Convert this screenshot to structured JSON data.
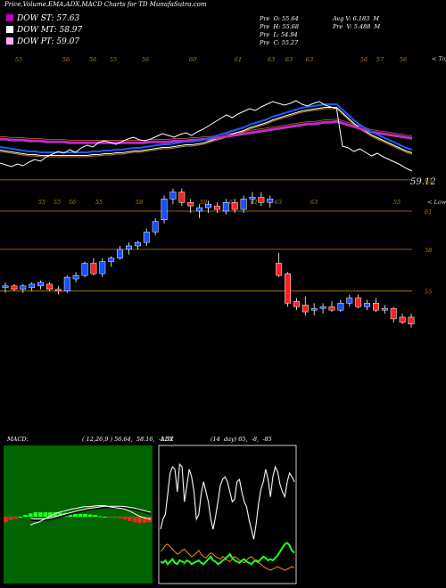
{
  "header": {
    "title": "Price,Volume,EMA,ADX,MACD Charts for TD MunafaSutra.com",
    "legends": [
      {
        "label": "DOW ST: 57.63",
        "color": "#c000c0"
      },
      {
        "label": "DOW MT: 58.97",
        "color": "#ffffff"
      },
      {
        "label": "DOW PT: 59.07",
        "color": "#ffb0ff"
      }
    ],
    "stats_left": [
      "Pre  O: 55.64",
      "Pre  H: 55.68",
      "Pre  L: 54.94",
      "Pre  C: 55.27"
    ],
    "stats_right": [
      "Avg V: 6.183  M",
      "Pre  V: 5.488  M"
    ]
  },
  "colors": {
    "up": "#1a4fff",
    "down": "#ff2020",
    "grid": "#b8860b",
    "ema_fast": "#1a5cff",
    "ema_magenta": "#d020d0",
    "price_line": "#ffffff",
    "adx_green": "#22ff22",
    "adx_orange": "#ff8c00"
  },
  "chart_data": [
    {
      "type": "line",
      "panel": "price_ema",
      "top_tick_labels": [
        "55",
        "56",
        "56",
        "55",
        "56",
        "60",
        "61",
        "63",
        "63",
        "63",
        "56",
        "57",
        "56"
      ],
      "bottom_tick_labels": [
        "55",
        "55",
        "56",
        "55",
        "59",
        "59",
        "61",
        "61",
        "63",
        "63",
        "55"
      ],
      "right_top_label": "< Tops",
      "right_bottom_label": "< Lows",
      "last_price_label": "59.12",
      "price": [
        56.2,
        56.0,
        55.8,
        56.1,
        55.9,
        56.3,
        56.6,
        56.4,
        56.9,
        57.2,
        57.5,
        57.3,
        57.7,
        57.4,
        57.9,
        58.2,
        58.0,
        58.5,
        58.7,
        58.5,
        58.3,
        58.6,
        58.9,
        59.1,
        58.8,
        58.7,
        58.9,
        59.2,
        59.5,
        59.3,
        59.1,
        59.4,
        59.6,
        59.3,
        59.7,
        60.0,
        60.4,
        60.8,
        61.2,
        61.6,
        61.3,
        61.7,
        62.0,
        62.3,
        62.1,
        62.5,
        62.8,
        63.1,
        62.9,
        62.7,
        62.9,
        63.2,
        62.8,
        62.6,
        62.9,
        63.1,
        62.7,
        62.5,
        62.3,
        58.1,
        57.9,
        57.5,
        57.8,
        57.4,
        57.0,
        57.3,
        56.9,
        56.6,
        56.3,
        56.0,
        55.6,
        55.3
      ],
      "ema_fast": [
        58.0,
        57.9,
        57.8,
        57.7,
        57.6,
        57.5,
        57.5,
        57.4,
        57.4,
        57.4,
        57.4,
        57.4,
        57.4,
        57.4,
        57.4,
        57.4,
        57.5,
        57.5,
        57.6,
        57.6,
        57.7,
        57.7,
        57.8,
        57.9,
        57.9,
        58.0,
        58.1,
        58.2,
        58.3,
        58.3,
        58.4,
        58.5,
        58.6,
        58.6,
        58.7,
        58.8,
        59.0,
        59.2,
        59.4,
        59.6,
        59.8,
        60.0,
        60.2,
        60.5,
        60.7,
        60.9,
        61.1,
        61.4,
        61.6,
        61.8,
        62.0,
        62.2,
        62.4,
        62.5,
        62.6,
        62.7,
        62.8,
        62.8,
        62.8,
        62.2,
        61.6,
        61.0,
        60.5,
        60.1,
        59.7,
        59.4,
        59.1,
        58.8,
        58.5,
        58.2,
        57.9,
        57.7
      ],
      "ema_magenta": [
        58.9,
        58.9,
        58.8,
        58.8,
        58.8,
        58.7,
        58.7,
        58.7,
        58.6,
        58.6,
        58.6,
        58.6,
        58.5,
        58.5,
        58.5,
        58.5,
        58.5,
        58.5,
        58.5,
        58.5,
        58.5,
        58.5,
        58.5,
        58.5,
        58.5,
        58.5,
        58.6,
        58.6,
        58.6,
        58.6,
        58.7,
        58.7,
        58.7,
        58.8,
        58.8,
        58.9,
        58.9,
        59.0,
        59.1,
        59.2,
        59.3,
        59.4,
        59.5,
        59.6,
        59.7,
        59.8,
        59.9,
        60.0,
        60.1,
        60.2,
        60.3,
        60.4,
        60.5,
        60.6,
        60.6,
        60.7,
        60.8,
        60.8,
        60.9,
        60.7,
        60.5,
        60.3,
        60.1,
        59.9,
        59.7,
        59.6,
        59.5,
        59.4,
        59.3,
        59.2,
        59.1,
        59.0
      ]
    },
    {
      "type": "candlestick",
      "panel": "price_candles",
      "right_labels": [
        "63",
        "61",
        "58",
        "55"
      ],
      "candles": [
        [
          56.6,
          56.9,
          56.3,
          56.7
        ],
        [
          56.7,
          56.8,
          56.4,
          56.5
        ],
        [
          56.5,
          56.8,
          56.3,
          56.7
        ],
        [
          56.6,
          56.9,
          56.4,
          56.8
        ],
        [
          56.7,
          57.0,
          56.5,
          56.9
        ],
        [
          56.8,
          56.9,
          56.4,
          56.5
        ],
        [
          56.5,
          56.7,
          56.2,
          56.4
        ],
        [
          56.4,
          57.3,
          56.3,
          57.2
        ],
        [
          57.1,
          57.5,
          56.9,
          57.3
        ],
        [
          57.3,
          58.1,
          57.2,
          58.0
        ],
        [
          58.0,
          58.3,
          57.3,
          57.4
        ],
        [
          57.4,
          58.3,
          57.2,
          58.1
        ],
        [
          58.1,
          58.4,
          57.8,
          58.3
        ],
        [
          58.3,
          59.0,
          58.2,
          58.8
        ],
        [
          58.8,
          59.2,
          58.5,
          59.0
        ],
        [
          59.0,
          59.3,
          58.8,
          59.2
        ],
        [
          59.2,
          60.0,
          59.0,
          59.8
        ],
        [
          59.8,
          60.6,
          59.6,
          60.4
        ],
        [
          60.5,
          61.9,
          60.3,
          61.7
        ],
        [
          61.7,
          62.3,
          61.4,
          62.1
        ],
        [
          62.1,
          62.3,
          61.3,
          61.5
        ],
        [
          61.5,
          61.7,
          60.9,
          61.3
        ],
        [
          61.0,
          61.4,
          60.6,
          61.2
        ],
        [
          61.2,
          61.6,
          60.9,
          61.4
        ],
        [
          61.3,
          61.5,
          60.9,
          61.1
        ],
        [
          61.0,
          61.7,
          60.8,
          61.5
        ],
        [
          61.5,
          61.7,
          60.9,
          61.1
        ],
        [
          61.1,
          61.9,
          60.9,
          61.7
        ],
        [
          61.7,
          62.1,
          61.4,
          61.8
        ],
        [
          61.8,
          62.1,
          61.3,
          61.5
        ],
        [
          61.5,
          61.9,
          61.2,
          61.7
        ],
        [
          58.0,
          58.6,
          57.2,
          57.3
        ],
        [
          57.4,
          57.5,
          55.5,
          55.7
        ],
        [
          55.8,
          56.0,
          55.3,
          55.5
        ],
        [
          55.6,
          56.1,
          55.0,
          55.2
        ],
        [
          55.3,
          55.7,
          55.0,
          55.4
        ],
        [
          55.4,
          55.7,
          55.1,
          55.5
        ],
        [
          55.5,
          55.8,
          55.2,
          55.3
        ],
        [
          55.3,
          55.9,
          55.2,
          55.7
        ],
        [
          55.7,
          56.2,
          55.5,
          56.0
        ],
        [
          56.0,
          56.2,
          55.4,
          55.5
        ],
        [
          55.5,
          55.9,
          55.3,
          55.7
        ],
        [
          55.7,
          56.0,
          55.2,
          55.3
        ],
        [
          55.3,
          55.6,
          55.1,
          55.4
        ],
        [
          55.4,
          55.5,
          54.6,
          54.8
        ],
        [
          54.9,
          55.1,
          54.5,
          54.6
        ],
        [
          54.9,
          55.1,
          54.3,
          54.5
        ]
      ]
    },
    {
      "type": "line",
      "panel": "macd",
      "title": "MACD:",
      "params_text": "( 12,26,9 ) 56.64,  58.16,  -1.52",
      "macd": [
        -0.15,
        -0.12,
        -0.1,
        -0.06,
        -0.02,
        0.02,
        0.06,
        0.08,
        0.1,
        0.12,
        0.14,
        0.15,
        0.17,
        0.18,
        0.18,
        0.19,
        0.2,
        0.2,
        0.2,
        0.18,
        0.17,
        0.16,
        0.15,
        0.13,
        0.1,
        0.06,
        0.02,
        -0.01,
        -0.03,
        -0.04
      ],
      "signal": [
        -0.05,
        -0.06,
        -0.06,
        -0.06,
        -0.05,
        -0.04,
        -0.02,
        0.0,
        0.02,
        0.04,
        0.06,
        0.08,
        0.1,
        0.11,
        0.13,
        0.14,
        0.15,
        0.16,
        0.17,
        0.17,
        0.17,
        0.17,
        0.17,
        0.16,
        0.15,
        0.14,
        0.12,
        0.1,
        0.08,
        0.06
      ],
      "hist": [
        -0.1,
        -0.06,
        -0.04,
        0.0,
        0.03,
        0.06,
        0.08,
        0.08,
        0.08,
        0.08,
        0.08,
        0.07,
        0.07,
        0.07,
        0.05,
        0.05,
        0.05,
        0.04,
        0.03,
        0.01,
        0.0,
        -0.01,
        -0.02,
        -0.03,
        -0.05,
        -0.08,
        -0.1,
        -0.11,
        -0.11,
        -0.1
      ]
    },
    {
      "type": "line",
      "panel": "adx",
      "title": "ADX",
      "params_text": "(14  day) 65,  -8,  -85",
      "adx": [
        40,
        48,
        52,
        68,
        85,
        90,
        88,
        70,
        92,
        90,
        62,
        75,
        88,
        82,
        70,
        48,
        52,
        68,
        78,
        70,
        62,
        48,
        40,
        50,
        62,
        75,
        80,
        82,
        78,
        70,
        62,
        64,
        78,
        80,
        70,
        62,
        58,
        48,
        40,
        32,
        44,
        60,
        72,
        78,
        88,
        80,
        66,
        82,
        90,
        86,
        76,
        70,
        66,
        78,
        85,
        82,
        78
      ],
      "plus_di": [
        14,
        13,
        15,
        12,
        14,
        16,
        13,
        12,
        15,
        14,
        13,
        15,
        14,
        12,
        13,
        14,
        15,
        13,
        12,
        14,
        16,
        18,
        15,
        14,
        12,
        13,
        15,
        16,
        18,
        20,
        17,
        15,
        14,
        13,
        15,
        16,
        14,
        13,
        12,
        14,
        15,
        14,
        16,
        18,
        17,
        15,
        16,
        15,
        17,
        19,
        22,
        25,
        28,
        29,
        27,
        23,
        21
      ],
      "minus_di": [
        22,
        24,
        27,
        28,
        26,
        24,
        22,
        20,
        21,
        23,
        24,
        22,
        20,
        18,
        19,
        21,
        23,
        20,
        18,
        17,
        19,
        21,
        20,
        18,
        17,
        16,
        18,
        17,
        15,
        14,
        16,
        18,
        17,
        15,
        14,
        13,
        15,
        17,
        18,
        16,
        14,
        13,
        12,
        10,
        9,
        8,
        7,
        8,
        9,
        10,
        9,
        8,
        7,
        8,
        9,
        10,
        9
      ]
    }
  ]
}
